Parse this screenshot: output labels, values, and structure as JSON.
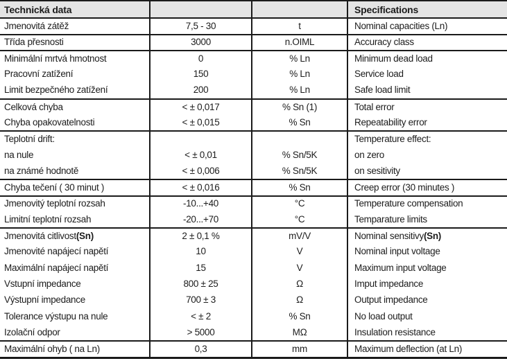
{
  "header": {
    "czech": "Technická data",
    "english": "Specifications"
  },
  "rows": [
    {
      "cs": "Jmenovitá zátěž",
      "value": "7,5 - 30",
      "unit": "t",
      "en": "Nominal capacities (Ln)",
      "group_start": true
    },
    {
      "cs": "Třída přesnosti",
      "value": "3000",
      "unit": "n.OIML",
      "en": "Accuracy class",
      "group_start": true
    },
    {
      "cs": "Minimální mrtvá hmotnost",
      "value": "0",
      "unit": "% Ln",
      "en": "Minimum dead load",
      "group_start": true
    },
    {
      "cs": "Pracovní zatížení",
      "value": "150",
      "unit": "% Ln",
      "en": "Service load"
    },
    {
      "cs": "Limit bezpečného zatížení",
      "value": "200",
      "unit": "% Ln",
      "en": "Safe load limit"
    },
    {
      "cs": "Celková chyba",
      "value": "< ± 0,017",
      "unit": "% Sn (1)",
      "en": "Total error",
      "group_start": true
    },
    {
      "cs": "Chyba opakovatelnosti",
      "value": "< ± 0,015",
      "unit": "% Sn",
      "en": "Repeatability error"
    },
    {
      "cs": "Teplotní drift:",
      "value": "",
      "unit": "",
      "en": "Temperature effect:",
      "group_start": true
    },
    {
      "cs": "na nule",
      "value": "< ± 0,01",
      "unit": "% Sn/5K",
      "en": "on zero"
    },
    {
      "cs": "na známé hodnotě",
      "value": "< ± 0,006",
      "unit": "% Sn/5K",
      "en": "on sesitivity"
    },
    {
      "cs": "Chyba tečení ( 30 minut )",
      "value": "< ± 0,016",
      "unit": "% Sn",
      "en": "Creep error (30 minutes )",
      "group_start": true
    },
    {
      "cs": "Jmenovitý teplotní rozsah",
      "value": "-10...+40",
      "unit": "°C",
      "en": "Temperature compensation",
      "group_start": true
    },
    {
      "cs": "Limitní teplotní rozsah",
      "value": "-20...+70",
      "unit": "°C",
      "en": "Temparature limits"
    },
    {
      "cs": "Jmenovitá citlivost ",
      "cs_bold": "(Sn)",
      "value": "2 ± 0,1 %",
      "unit": "mV/V",
      "en": "Nominal sensitivy ",
      "en_bold": "(Sn)",
      "group_start": true
    },
    {
      "cs": "Jmenovité napájecí napětí",
      "value": "10",
      "unit": "V",
      "en": "Nominal input voltage"
    },
    {
      "cs": "Maximální napájecí napětí",
      "value": "15",
      "unit": "V",
      "en": "Maximum input voltage"
    },
    {
      "cs": "Vstupní impedance",
      "value": "800 ± 25",
      "unit": "Ω",
      "en": "Imput impedance"
    },
    {
      "cs": "Výstupní impedance",
      "value": "700 ± 3",
      "unit": "Ω",
      "en": "Output impedance"
    },
    {
      "cs": "Tolerance výstupu na nule",
      "value": "< ± 2",
      "unit": "% Sn",
      "en": "No load output"
    },
    {
      "cs": "Izolační odpor",
      "value": "> 5000",
      "unit": "MΩ",
      "en": "Insulation resistance"
    },
    {
      "cs": "Maximální ohyb ( na Ln)",
      "value": "0,3",
      "unit": "mm",
      "en": "Maximum deflection (at Ln)",
      "group_start": true
    }
  ],
  "colors": {
    "header_bg": "#e4e4e4",
    "border": "#1a1a1a",
    "text": "#1c1c1c",
    "background": "#ffffff"
  }
}
